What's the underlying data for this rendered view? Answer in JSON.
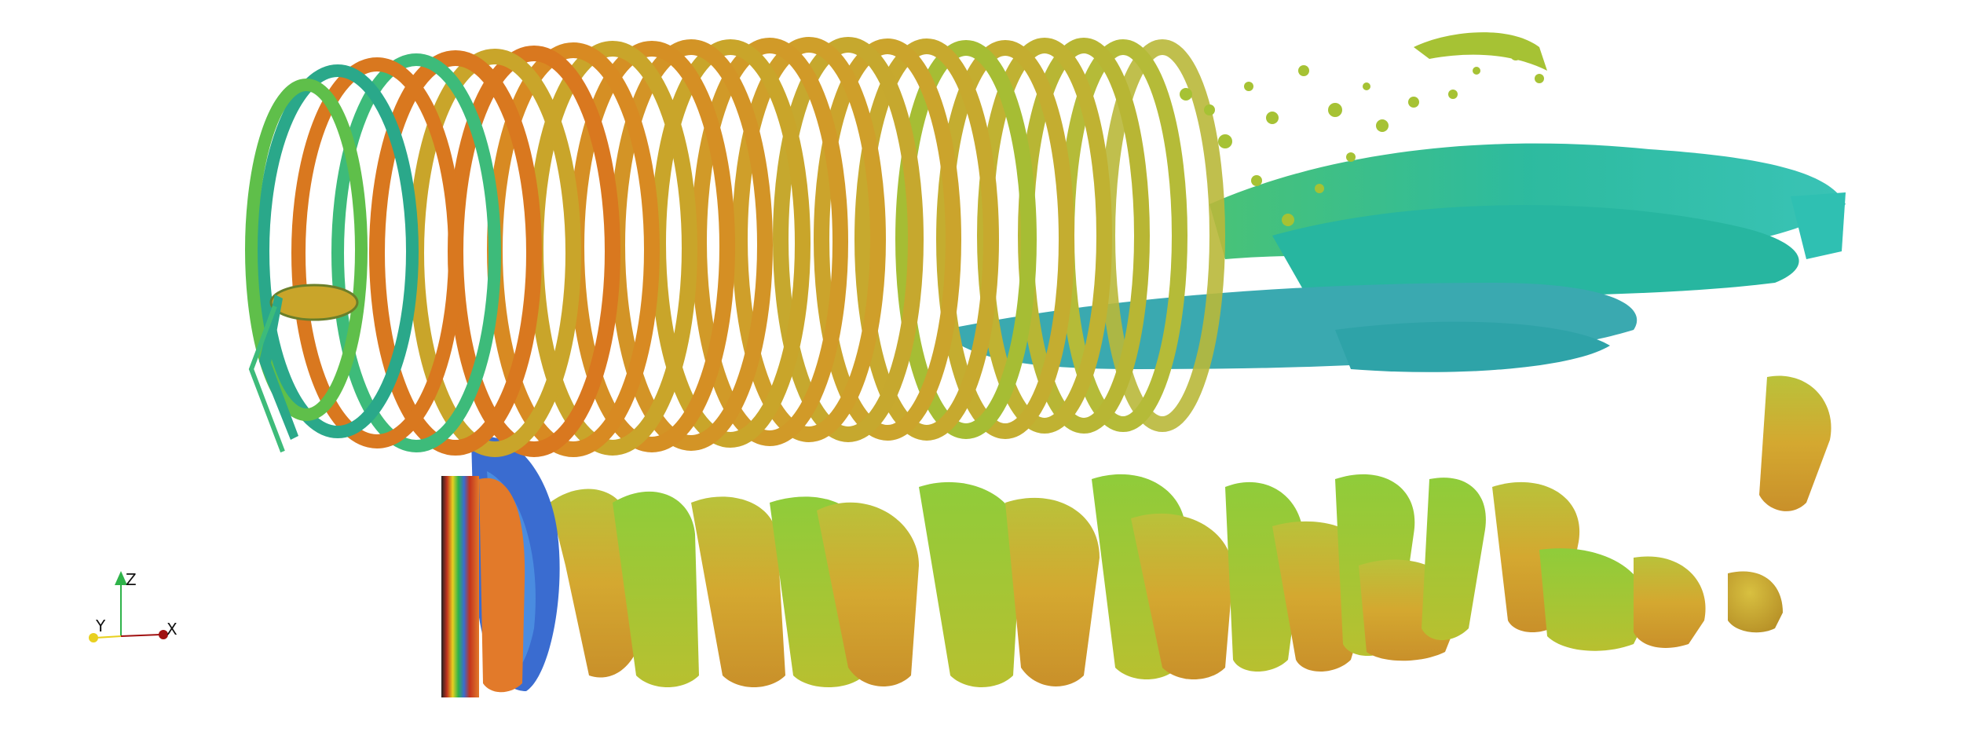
{
  "viewport": {
    "background": "#ffffff",
    "content": "isosurface-vortex-structures"
  },
  "orientation_axes": {
    "z_label": "Z",
    "y_label": "Y",
    "x_label": "X",
    "z_color": "#2fb34a",
    "y_color": "#e8d020",
    "x_color": "#a01010"
  },
  "colors": {
    "ring_orange": "#d9781f",
    "ring_gold": "#c9a52a",
    "ring_green": "#7fbf2a",
    "ring_teal": "#2aa88a",
    "wake_teal": "#22b79a",
    "wake_cyan": "#2fc0b2",
    "wake_yellow": "#c8b830",
    "near_blue": "#3a6cd0",
    "tower_red": "#c2331e"
  }
}
